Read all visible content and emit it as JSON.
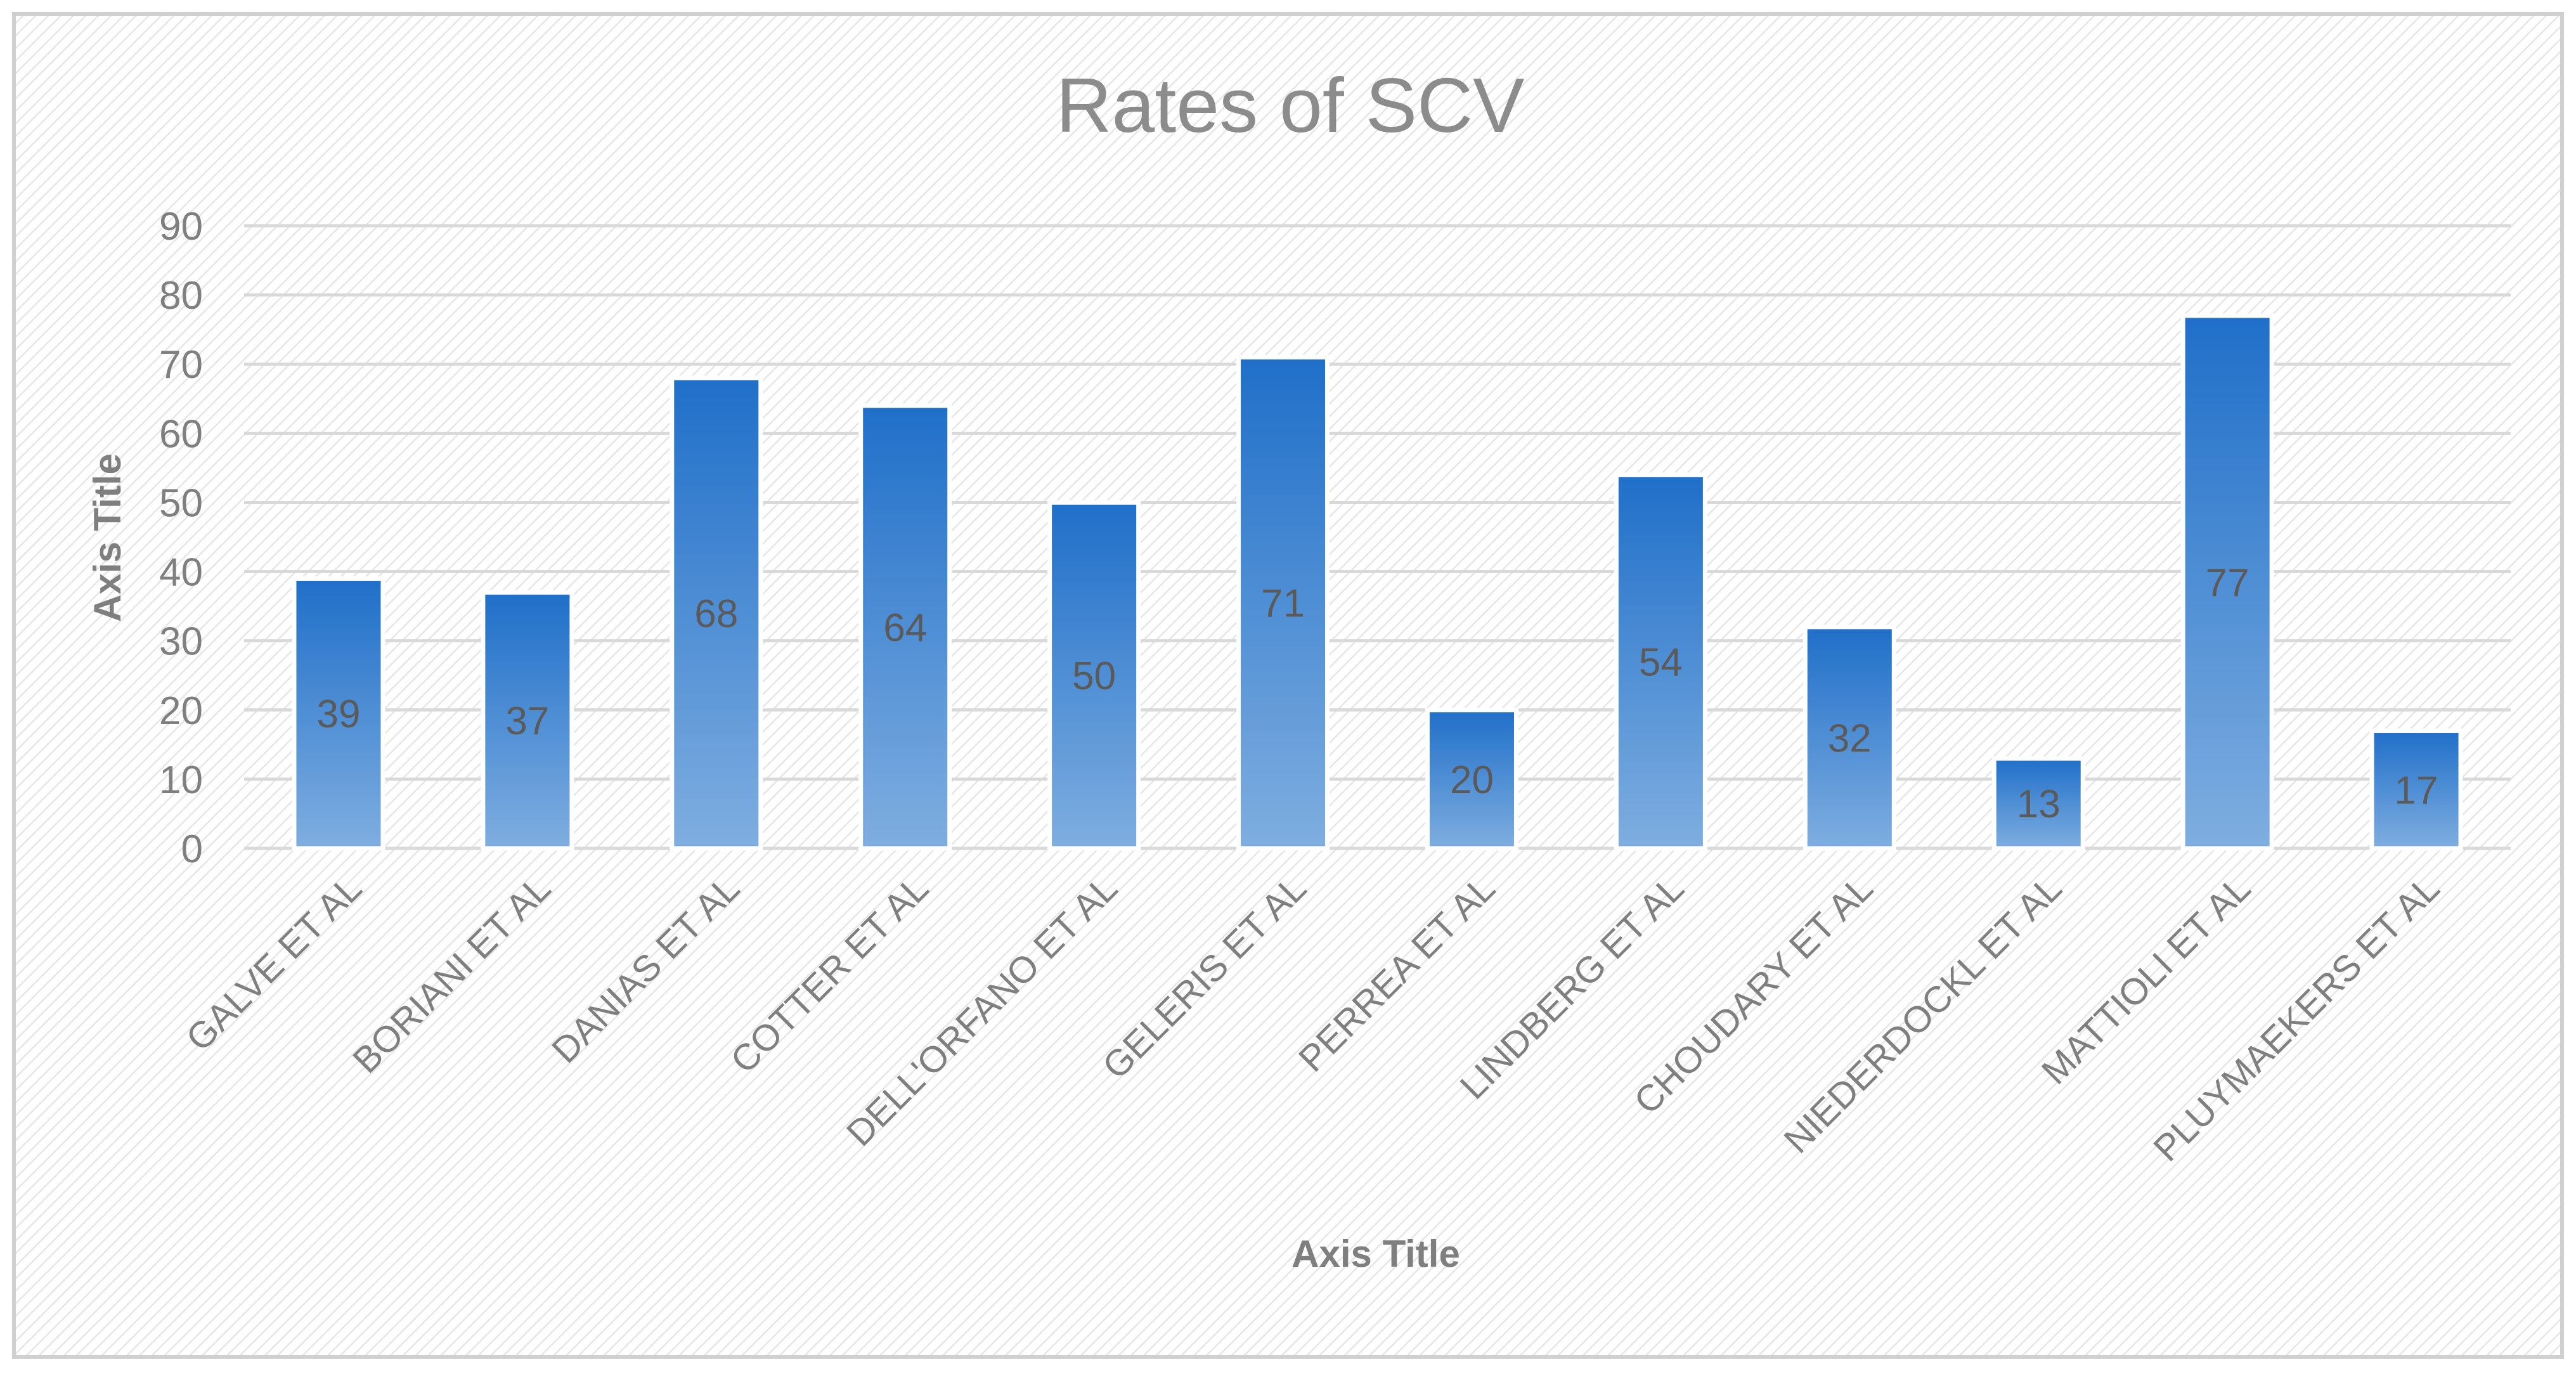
{
  "chart_data": {
    "type": "bar",
    "title": "Rates of SCV",
    "xlabel": "Axis Title",
    "ylabel": "Axis Title",
    "ylim": [
      0,
      90
    ],
    "yticks": [
      0,
      10,
      20,
      30,
      40,
      50,
      60,
      70,
      80,
      90
    ],
    "grid": true,
    "legend": "none",
    "categories": [
      "GALVE ET AL",
      "BORIANI ET AL",
      "DANIAS ET AL",
      "COTTER ET AL",
      "DELL'ORFANO ET AL",
      "GELERIS ET AL",
      "PERREA ET AL",
      "LINDBERG ET AL",
      "CHOUDARY ET AL",
      "NIEDERDOCKL ET AL",
      "MATTIOLI ET AL",
      "PLUYMAEKERS ET AL"
    ],
    "series": [
      {
        "name": "Rates of SCV",
        "values": [
          39,
          37,
          68,
          64,
          50,
          71,
          20,
          54,
          32,
          13,
          77,
          17
        ]
      }
    ],
    "colors": {
      "bar_top": "#1f6fc9",
      "bar_bottom": "#7faee0",
      "bar_outline": "#ffffff",
      "grid": "#d9d9d9",
      "text": "#7f7f7f",
      "title": "#8c8c8c",
      "data_label": "#5a5a5a",
      "frame": "#d0d0d0"
    }
  }
}
